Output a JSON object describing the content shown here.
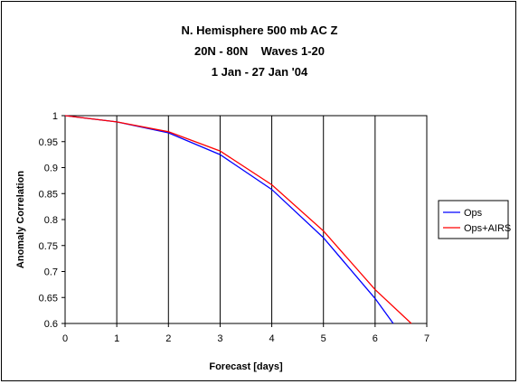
{
  "chart_data": {
    "type": "line",
    "title_lines": [
      "N. Hemisphere 500 mb AC Z",
      "20N - 80N    Waves 1-20",
      "1 Jan - 27 Jan '04"
    ],
    "xlabel": "Forecast [days]",
    "ylabel": "Anomaly Correlation",
    "xlim": [
      0,
      7
    ],
    "ylim": [
      0.6,
      1
    ],
    "x_ticks": [
      "0",
      "1",
      "2",
      "3",
      "4",
      "5",
      "6",
      "7"
    ],
    "y_ticks": [
      "1",
      "0.95",
      "0.9",
      "0.85",
      "0.8",
      "0.75",
      "0.7",
      "0.65",
      "0.6"
    ],
    "grid": "vertical",
    "legend_position": "right",
    "series": [
      {
        "name": "Ops",
        "color": "#0000ff",
        "x": [
          0,
          1,
          2,
          3,
          4,
          5,
          6,
          6.35
        ],
        "y": [
          1.0,
          0.988,
          0.967,
          0.925,
          0.858,
          0.765,
          0.648,
          0.6
        ]
      },
      {
        "name": "Ops+AIRS",
        "color": "#ff0000",
        "x": [
          0,
          1,
          2,
          3,
          4,
          5,
          6,
          6.7
        ],
        "y": [
          1.0,
          0.988,
          0.969,
          0.932,
          0.867,
          0.778,
          0.665,
          0.6
        ]
      }
    ]
  }
}
